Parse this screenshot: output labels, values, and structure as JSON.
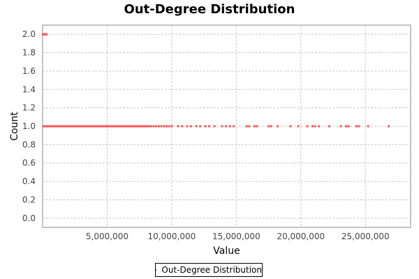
{
  "chart_data": {
    "type": "scatter",
    "title": "Out-Degree Distribution",
    "xlabel": "Value",
    "ylabel": "Count",
    "xlim": [
      0,
      28500000
    ],
    "ylim": [
      -0.1,
      2.1
    ],
    "x_ticks": [
      5000000,
      10000000,
      15000000,
      20000000,
      25000000
    ],
    "x_tick_labels": [
      "5,000,000",
      "10,000,000",
      "15,000,000",
      "20,000,000",
      "25,000,000"
    ],
    "y_ticks": [
      0.0,
      0.2,
      0.4,
      0.6,
      0.8,
      1.0,
      1.2,
      1.4,
      1.6,
      1.8,
      2.0
    ],
    "y_tick_labels": [
      "0.0",
      "0.2",
      "0.4",
      "0.6",
      "0.8",
      "1.0",
      "1.2",
      "1.4",
      "1.6",
      "1.8",
      "2.0"
    ],
    "grid": true,
    "legend_position": "bottom-center",
    "series": [
      {
        "name": "Out-Degree Distribution",
        "color": "#ff5555",
        "points": [
          {
            "x": 20000,
            "y": 2
          },
          {
            "x": 100000,
            "y": 2
          },
          {
            "x": 200000,
            "y": 2
          },
          {
            "x": 300000,
            "y": 2
          },
          {
            "x": 50000,
            "y": 1
          },
          {
            "x": 300000,
            "y": 1
          },
          {
            "x": 600000,
            "y": 1
          },
          {
            "x": 900000,
            "y": 1
          },
          {
            "x": 1200000,
            "y": 1
          },
          {
            "x": 1500000,
            "y": 1
          },
          {
            "x": 1800000,
            "y": 1
          },
          {
            "x": 2100000,
            "y": 1
          },
          {
            "x": 2400000,
            "y": 1
          },
          {
            "x": 2700000,
            "y": 1
          },
          {
            "x": 3000000,
            "y": 1
          },
          {
            "x": 3300000,
            "y": 1
          },
          {
            "x": 3600000,
            "y": 1
          },
          {
            "x": 3900000,
            "y": 1
          },
          {
            "x": 4200000,
            "y": 1
          },
          {
            "x": 4500000,
            "y": 1
          },
          {
            "x": 4800000,
            "y": 1
          },
          {
            "x": 5100000,
            "y": 1
          },
          {
            "x": 5400000,
            "y": 1
          },
          {
            "x": 5700000,
            "y": 1
          },
          {
            "x": 6000000,
            "y": 1
          },
          {
            "x": 6300000,
            "y": 1
          },
          {
            "x": 6600000,
            "y": 1
          },
          {
            "x": 6900000,
            "y": 1
          },
          {
            "x": 7200000,
            "y": 1
          },
          {
            "x": 7500000,
            "y": 1
          },
          {
            "x": 7800000,
            "y": 1
          },
          {
            "x": 8100000,
            "y": 1
          },
          {
            "x": 8400000,
            "y": 1
          },
          {
            "x": 8600000,
            "y": 1
          },
          {
            "x": 8800000,
            "y": 1
          },
          {
            "x": 9000000,
            "y": 1
          },
          {
            "x": 9200000,
            "y": 1
          },
          {
            "x": 9400000,
            "y": 1
          },
          {
            "x": 9600000,
            "y": 1
          },
          {
            "x": 9800000,
            "y": 1
          },
          {
            "x": 10000000,
            "y": 1
          },
          {
            "x": 10500000,
            "y": 1
          },
          {
            "x": 10800000,
            "y": 1
          },
          {
            "x": 11200000,
            "y": 1
          },
          {
            "x": 11500000,
            "y": 1
          },
          {
            "x": 11900000,
            "y": 1
          },
          {
            "x": 12200000,
            "y": 1
          },
          {
            "x": 12600000,
            "y": 1
          },
          {
            "x": 12900000,
            "y": 1
          },
          {
            "x": 13300000,
            "y": 1
          },
          {
            "x": 13900000,
            "y": 1
          },
          {
            "x": 14200000,
            "y": 1
          },
          {
            "x": 14500000,
            "y": 1
          },
          {
            "x": 14800000,
            "y": 1
          },
          {
            "x": 15800000,
            "y": 1
          },
          {
            "x": 16000000,
            "y": 1
          },
          {
            "x": 16400000,
            "y": 1
          },
          {
            "x": 16600000,
            "y": 1
          },
          {
            "x": 17500000,
            "y": 1
          },
          {
            "x": 17700000,
            "y": 1
          },
          {
            "x": 18200000,
            "y": 1
          },
          {
            "x": 19200000,
            "y": 1
          },
          {
            "x": 19800000,
            "y": 1
          },
          {
            "x": 20500000,
            "y": 1
          },
          {
            "x": 20900000,
            "y": 1
          },
          {
            "x": 21100000,
            "y": 1
          },
          {
            "x": 21400000,
            "y": 1
          },
          {
            "x": 22200000,
            "y": 1
          },
          {
            "x": 23100000,
            "y": 1
          },
          {
            "x": 23500000,
            "y": 1
          },
          {
            "x": 23700000,
            "y": 1
          },
          {
            "x": 24300000,
            "y": 1
          },
          {
            "x": 24500000,
            "y": 1
          },
          {
            "x": 25200000,
            "y": 1
          },
          {
            "x": 26800000,
            "y": 1
          }
        ]
      }
    ]
  }
}
